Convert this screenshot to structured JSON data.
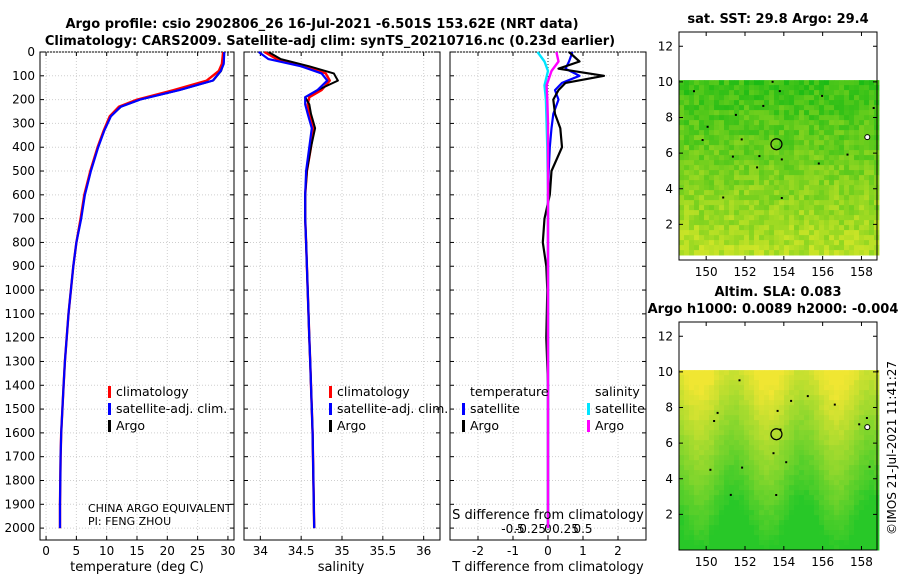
{
  "header": {
    "line1": "Argo profile: csio 2902806_26 16-Jul-2021 -6.501S 153.62E (NRT data)",
    "line2": "Climatology: CARS2009. Satellite-adj clim: synTS_20210716.nc (0.23d earlier)"
  },
  "colors": {
    "climatology": "#ff0000",
    "satellite_adj": "#0000ff",
    "argo": "#000000",
    "sal_satellite": "#00e5ff",
    "sal_argo": "#ff00ff"
  },
  "chart_data": [
    {
      "id": "temperature",
      "type": "line",
      "xlabel": "temperature (deg C)",
      "ylabel": "",
      "xlim": [
        -1,
        31
      ],
      "ylim": [
        2050,
        0
      ],
      "xticks": [
        0,
        5,
        10,
        15,
        20,
        25,
        30
      ],
      "xtick_labels": [
        "0",
        "5",
        "10",
        "15",
        "20",
        "25",
        "30"
      ],
      "yticks": [
        0,
        100,
        200,
        300,
        400,
        500,
        600,
        700,
        800,
        900,
        1000,
        1100,
        1200,
        1300,
        1400,
        1500,
        1600,
        1700,
        1800,
        1900,
        2000
      ],
      "ytick_labels": [
        "0",
        "100",
        "200",
        "300",
        "400",
        "500",
        "600",
        "700",
        "800",
        "900",
        "1000",
        "1100",
        "1200",
        "1300",
        "1400",
        "1500",
        "1600",
        "1700",
        "1800",
        "1900",
        "2000"
      ],
      "legend": {
        "items": [
          "climatology",
          "satellite-adj. clim.",
          "Argo"
        ]
      },
      "annotations": [
        "CHINA ARGO EQUIVALENT",
        "PI: FENG ZHOU"
      ],
      "series": [
        {
          "name": "climatology",
          "color": "#ff0000",
          "x": [
            29.2,
            29.0,
            28.5,
            26.5,
            21.0,
            15.0,
            12.0,
            10.5,
            9.5,
            8.5,
            7.3,
            6.3,
            5.7,
            5.0,
            4.5,
            4.1,
            3.7,
            3.4,
            3.1,
            2.9,
            2.7,
            2.5,
            2.4,
            2.3,
            2.3
          ],
          "y": [
            0,
            50,
            80,
            120,
            160,
            200,
            230,
            270,
            330,
            400,
            500,
            600,
            700,
            800,
            900,
            1000,
            1100,
            1200,
            1300,
            1400,
            1500,
            1600,
            1700,
            1900,
            2000
          ]
        },
        {
          "name": "satellite-adj. clim.",
          "color": "#0000ff",
          "x": [
            29.4,
            29.3,
            28.8,
            27.5,
            22.0,
            15.5,
            12.3,
            10.7,
            9.6,
            8.6,
            7.4,
            6.4,
            5.8,
            5.0,
            4.5,
            4.1,
            3.7,
            3.4,
            3.1,
            2.9,
            2.7,
            2.5,
            2.4,
            2.3,
            2.3
          ],
          "y": [
            0,
            50,
            80,
            120,
            160,
            200,
            230,
            270,
            330,
            400,
            500,
            600,
            700,
            800,
            900,
            1000,
            1100,
            1200,
            1300,
            1400,
            1500,
            1600,
            1700,
            1900,
            2000
          ]
        },
        {
          "name": "Argo",
          "color": "#000000",
          "x": [
            29.4,
            29.3,
            28.9,
            27.6,
            22.1,
            15.6,
            12.4,
            10.7,
            9.6,
            8.6,
            7.4,
            6.4,
            5.8,
            5.0,
            4.5,
            4.1,
            3.7,
            3.4,
            3.1,
            2.9,
            2.7,
            2.5,
            2.4,
            2.3,
            2.3
          ],
          "y": [
            0,
            50,
            80,
            120,
            160,
            200,
            230,
            270,
            330,
            400,
            500,
            600,
            700,
            800,
            900,
            1000,
            1100,
            1200,
            1300,
            1400,
            1500,
            1600,
            1700,
            1900,
            2000
          ]
        }
      ]
    },
    {
      "id": "salinity",
      "type": "line",
      "xlabel": "salinity",
      "xlim": [
        33.8,
        36.2
      ],
      "ylim": [
        2050,
        0
      ],
      "xticks": [
        34,
        34.5,
        35,
        35.5,
        36
      ],
      "xtick_labels": [
        "34",
        "34.5",
        "35",
        "35.5",
        "36"
      ],
      "legend": {
        "items": [
          "climatology",
          "satellite-adj. clim.",
          "Argo"
        ]
      },
      "series": [
        {
          "name": "climatology",
          "color": "#ff0000",
          "x": [
            34.05,
            34.2,
            34.55,
            34.8,
            34.85,
            34.75,
            34.6,
            34.58,
            34.6,
            34.65,
            34.62,
            34.57,
            34.55,
            34.55,
            34.56,
            34.57,
            34.58,
            34.59,
            34.6,
            34.61,
            34.62,
            34.63,
            34.64,
            34.65,
            34.66
          ],
          "y": [
            0,
            30,
            60,
            90,
            120,
            160,
            190,
            220,
            260,
            320,
            400,
            500,
            600,
            700,
            800,
            900,
            1000,
            1100,
            1200,
            1300,
            1400,
            1500,
            1600,
            1800,
            2000
          ]
        },
        {
          "name": "satellite-adj. clim.",
          "color": "#0000ff",
          "x": [
            33.98,
            34.1,
            34.5,
            34.75,
            34.82,
            34.7,
            34.55,
            34.55,
            34.58,
            34.63,
            34.6,
            34.56,
            34.55,
            34.55,
            34.56,
            34.57,
            34.58,
            34.59,
            34.6,
            34.61,
            34.62,
            34.63,
            34.64,
            34.65,
            34.66
          ],
          "y": [
            0,
            30,
            60,
            90,
            120,
            160,
            190,
            220,
            260,
            320,
            400,
            500,
            600,
            700,
            800,
            900,
            1000,
            1100,
            1200,
            1300,
            1400,
            1500,
            1600,
            1800,
            2000
          ]
        },
        {
          "name": "Argo",
          "color": "#000000",
          "x": [
            34.1,
            34.25,
            34.6,
            34.9,
            34.95,
            34.7,
            34.55,
            34.6,
            34.62,
            34.67,
            34.62,
            34.57,
            34.55,
            34.55,
            34.56,
            34.57,
            34.58,
            34.59,
            34.6,
            34.61,
            34.62,
            34.63,
            34.64,
            34.65,
            34.66
          ],
          "y": [
            0,
            30,
            60,
            90,
            120,
            160,
            190,
            220,
            260,
            320,
            400,
            500,
            600,
            700,
            800,
            900,
            1000,
            1100,
            1200,
            1300,
            1400,
            1500,
            1600,
            1800,
            2000
          ]
        }
      ]
    },
    {
      "id": "difference",
      "type": "line",
      "xlabel": "T difference from climatology",
      "top_xlabel": "S difference from climatology",
      "xlim": [
        -2.8,
        2.8
      ],
      "ylim": [
        2050,
        0
      ],
      "xticks": [
        -2,
        -1,
        0,
        1,
        2
      ],
      "xtick_labels": [
        "-2",
        "-1",
        "0",
        "1",
        "2"
      ],
      "s_ticks": [
        -0.5,
        -0.25,
        0,
        0.25,
        0.5
      ],
      "s_tick_labels": [
        "-0.5",
        "-0.25",
        "0",
        "0.25",
        "0.5"
      ],
      "legend": {
        "temperature_title": "temperature",
        "salinity_title": "salinity",
        "temperature_items": [
          "satellite",
          "Argo"
        ],
        "salinity_items": [
          "satellite",
          "Argo"
        ]
      },
      "series": [
        {
          "name": "temperature satellite",
          "color": "#0000ff",
          "x": [
            0.7,
            0.6,
            0.5,
            0.9,
            0.4,
            0.2,
            0.3,
            0.15,
            0.1,
            0.05,
            0.02,
            0.0,
            0.0,
            0.0,
            0.0,
            0.0,
            0.0,
            0.0,
            0.0,
            0.0,
            0.0
          ],
          "y": [
            0,
            40,
            70,
            100,
            130,
            160,
            200,
            260,
            320,
            400,
            500,
            600,
            700,
            800,
            900,
            1000,
            1200,
            1400,
            1600,
            1800,
            2000
          ]
        },
        {
          "name": "temperature Argo",
          "color": "#000000",
          "x": [
            0.6,
            0.9,
            0.3,
            1.6,
            0.5,
            0.3,
            0.15,
            0.2,
            0.35,
            0.4,
            0.1,
            0.05,
            -0.1,
            -0.15,
            -0.05,
            -0.02,
            -0.05,
            0.0,
            0.0,
            0.0,
            0.0
          ],
          "y": [
            0,
            40,
            70,
            100,
            130,
            160,
            200,
            260,
            320,
            400,
            500,
            600,
            700,
            800,
            900,
            1000,
            1200,
            1400,
            1600,
            1800,
            2000
          ]
        },
        {
          "name": "salinity satellite",
          "color": "#00e5ff",
          "x": [
            -0.15,
            -0.05,
            0.0,
            -0.05,
            -0.03,
            -0.02,
            -0.01,
            0.0,
            0.0,
            0.0,
            0.0,
            0.0,
            0.0,
            0.0,
            0.0
          ],
          "y": [
            0,
            40,
            80,
            140,
            200,
            300,
            400,
            600,
            800,
            1000,
            1200,
            1400,
            1600,
            1800,
            2000
          ]
        },
        {
          "name": "salinity Argo",
          "color": "#ff00ff",
          "x": [
            0.12,
            0.15,
            0.05,
            -0.02,
            -0.01,
            0.0,
            0.0,
            0.0,
            0.0,
            0.0,
            0.0,
            0.0,
            0.0,
            0.0,
            0.0
          ],
          "y": [
            0,
            40,
            80,
            140,
            200,
            300,
            400,
            600,
            800,
            1000,
            1200,
            1400,
            1600,
            1800,
            2000
          ]
        }
      ]
    },
    {
      "id": "sst_map",
      "type": "heatmap",
      "title": "sat. SST: 29.8 Argo: 29.4",
      "xlim": [
        148.6,
        158.8
      ],
      "ylim": [
        0,
        12.8
      ],
      "xticks": [
        150,
        152,
        154,
        156,
        158
      ],
      "xtick_labels": [
        "150",
        "152",
        "154",
        "156",
        "158"
      ],
      "yticks": [
        2,
        4,
        6,
        8,
        10,
        12
      ],
      "ytick_labels": [
        "2",
        "4",
        "6",
        "8",
        "10",
        "12"
      ],
      "data_extent": {
        "lon": [
          148.6,
          158.8
        ],
        "lat": [
          0.5,
          10.1
        ]
      },
      "float_position": {
        "lon": 153.62,
        "lat": 6.5
      }
    },
    {
      "id": "sla_map",
      "type": "heatmap",
      "title": "Altim. SLA: 0.083",
      "subtitle": "Argo h1000: 0.0089 h2000: -0.004",
      "xlim": [
        148.6,
        158.8
      ],
      "ylim": [
        0,
        12.8
      ],
      "xticks": [
        150,
        152,
        154,
        156,
        158
      ],
      "xtick_labels": [
        "150",
        "152",
        "154",
        "156",
        "158"
      ],
      "yticks": [
        2,
        4,
        6,
        8,
        10,
        12
      ],
      "ytick_labels": [
        "2",
        "4",
        "6",
        "8",
        "10",
        "12"
      ],
      "data_extent": {
        "lon": [
          148.6,
          158.8
        ],
        "lat": [
          0.0,
          10.1
        ]
      },
      "float_position": {
        "lon": 153.62,
        "lat": 6.5
      }
    }
  ],
  "footer": {
    "credit": "©IMOS 21-Jul-2021 11:41:27"
  }
}
